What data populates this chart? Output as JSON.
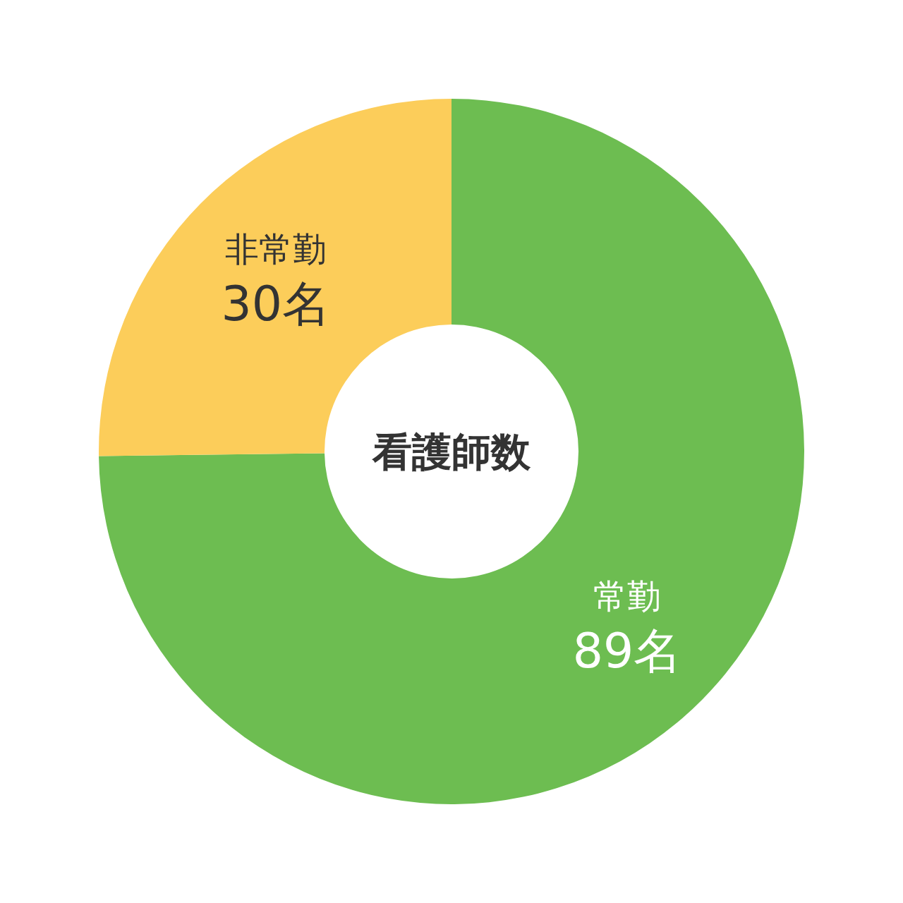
{
  "chart_data": {
    "type": "donut",
    "title": "看護師数",
    "categories": [
      "常勤",
      "非常勤"
    ],
    "values": [
      89,
      30
    ],
    "colors": [
      "#6dbd51",
      "#fccd5a"
    ],
    "value_labels": [
      "89名",
      "30名"
    ]
  }
}
